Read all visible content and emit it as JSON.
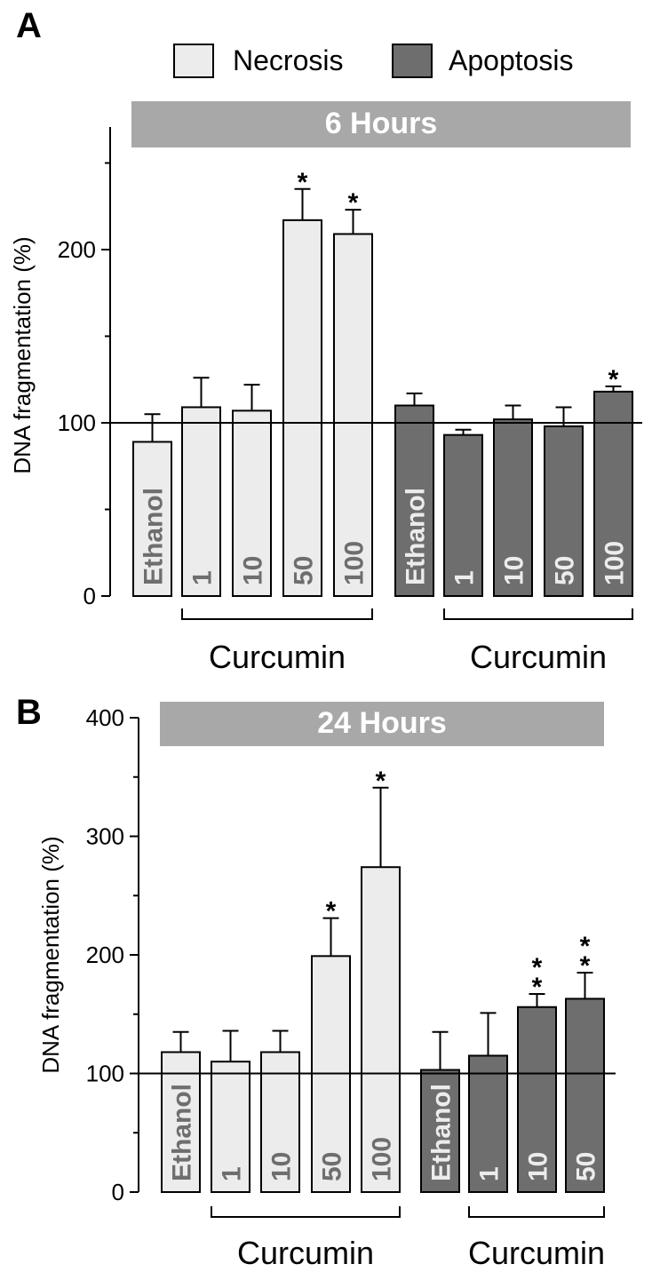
{
  "legend": {
    "necrosis": "Necrosis",
    "apoptosis": "Apoptosis"
  },
  "colors": {
    "necrosis": "#ececec",
    "apoptosis": "#6e6e6e",
    "banner": "#a8a8a8",
    "necrosis_label": "#6e6e6e",
    "apoptosis_label": "#ececec"
  },
  "chart_data": [
    {
      "type": "bar",
      "panel": "A",
      "title": "6 Hours",
      "ylabel": "DNA fragmentation (%)",
      "ylim": [
        0,
        270
      ],
      "yticks": [
        0,
        100,
        200
      ],
      "reference_line": 100,
      "bars": [
        {
          "series": "Necrosis",
          "label": "Ethanol",
          "value": 89,
          "error": 16,
          "sig": ""
        },
        {
          "series": "Necrosis",
          "label": "1",
          "value": 109,
          "error": 17,
          "sig": ""
        },
        {
          "series": "Necrosis",
          "label": "10",
          "value": 107,
          "error": 15,
          "sig": ""
        },
        {
          "series": "Necrosis",
          "label": "50",
          "value": 217,
          "error": 18,
          "sig": "*"
        },
        {
          "series": "Necrosis",
          "label": "100",
          "value": 209,
          "error": 14,
          "sig": "*"
        },
        {
          "series": "Apoptosis",
          "label": "Ethanol",
          "value": 110,
          "error": 7,
          "sig": ""
        },
        {
          "series": "Apoptosis",
          "label": "1",
          "value": 93,
          "error": 3,
          "sig": ""
        },
        {
          "series": "Apoptosis",
          "label": "10",
          "value": 102,
          "error": 8,
          "sig": ""
        },
        {
          "series": "Apoptosis",
          "label": "50",
          "value": 98,
          "error": 11,
          "sig": ""
        },
        {
          "series": "Apoptosis",
          "label": "100",
          "value": 118,
          "error": 3,
          "sig": "*"
        }
      ],
      "groups": [
        {
          "label": "Curcumin",
          "from": 1,
          "to": 4
        },
        {
          "label": "Curcumin",
          "from": 6,
          "to": 9
        }
      ]
    },
    {
      "type": "bar",
      "panel": "B",
      "title": "24 Hours",
      "ylabel": "DNA fragmentation (%)",
      "ylim": [
        0,
        400
      ],
      "yticks": [
        0,
        100,
        200,
        300,
        400
      ],
      "reference_line": 100,
      "bars": [
        {
          "series": "Necrosis",
          "label": "Ethanol",
          "value": 118,
          "error": 17,
          "sig": ""
        },
        {
          "series": "Necrosis",
          "label": "1",
          "value": 110,
          "error": 26,
          "sig": ""
        },
        {
          "series": "Necrosis",
          "label": "10",
          "value": 118,
          "error": 18,
          "sig": ""
        },
        {
          "series": "Necrosis",
          "label": "50",
          "value": 199,
          "error": 32,
          "sig": "*"
        },
        {
          "series": "Necrosis",
          "label": "100",
          "value": 274,
          "error": 67,
          "sig": "*"
        },
        {
          "series": "Apoptosis",
          "label": "Ethanol",
          "value": 103,
          "error": 32,
          "sig": ""
        },
        {
          "series": "Apoptosis",
          "label": "1",
          "value": 115,
          "error": 36,
          "sig": ""
        },
        {
          "series": "Apoptosis",
          "label": "10",
          "value": 156,
          "error": 11,
          "sig": "* *"
        },
        {
          "series": "Apoptosis",
          "label": "50",
          "value": 163,
          "error": 22,
          "sig": "* *"
        }
      ],
      "groups": [
        {
          "label": "Curcumin",
          "from": 1,
          "to": 4
        },
        {
          "label": "Curcumin",
          "from": 6,
          "to": 8
        }
      ]
    }
  ]
}
